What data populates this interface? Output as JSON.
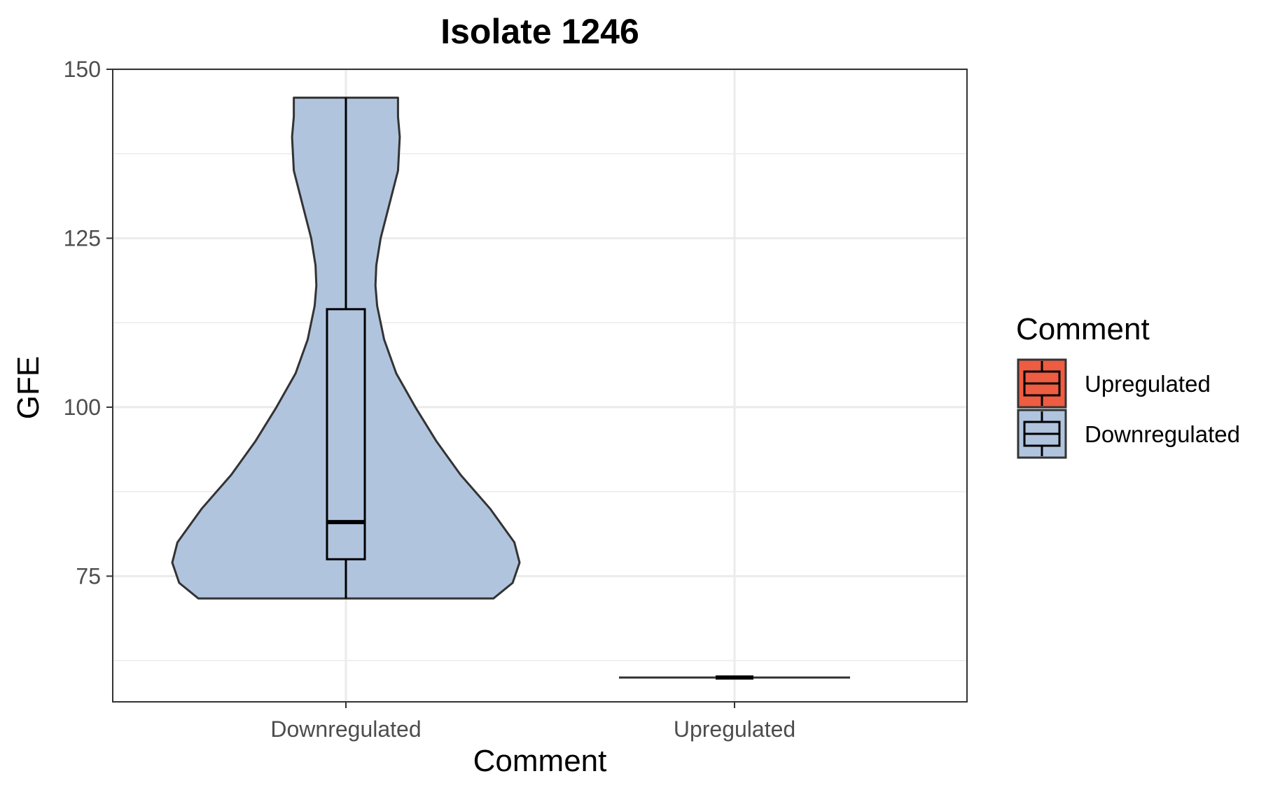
{
  "chart_data": {
    "type": "violin",
    "title": "Isolate 1246",
    "xlabel": "Comment",
    "ylabel": "GFE",
    "categories": [
      "Downregulated",
      "Upregulated"
    ],
    "ylim": [
      56.4,
      150
    ],
    "yticks": [
      75,
      100,
      125,
      150
    ],
    "grid": true,
    "legend": {
      "title": "Comment",
      "position": "right",
      "entries": [
        {
          "label": "Upregulated",
          "color": "#ee5c42"
        },
        {
          "label": "Downregulated",
          "color": "#b0c4de"
        }
      ]
    },
    "series": [
      {
        "category": "Downregulated",
        "color": "#b0c4de",
        "min": 71.7,
        "q1": 77.5,
        "median": 83.0,
        "q3": 114.5,
        "max": 145.8,
        "density_profile": [
          [
            71.7,
            0.85
          ],
          [
            74,
            0.96
          ],
          [
            77,
            1.0
          ],
          [
            80,
            0.97
          ],
          [
            85,
            0.83
          ],
          [
            90,
            0.66
          ],
          [
            95,
            0.52
          ],
          [
            100,
            0.4
          ],
          [
            105,
            0.29
          ],
          [
            110,
            0.22
          ],
          [
            115,
            0.18
          ],
          [
            118,
            0.17
          ],
          [
            121,
            0.175
          ],
          [
            125,
            0.2
          ],
          [
            130,
            0.25
          ],
          [
            135,
            0.3
          ],
          [
            140,
            0.31
          ],
          [
            143,
            0.3
          ],
          [
            145.8,
            0.3
          ]
        ]
      },
      {
        "category": "Upregulated",
        "color": "#ee5c42",
        "min": 60.0,
        "q1": 60.0,
        "median": 60.0,
        "q3": 60.0,
        "max": 60.0,
        "density_profile": []
      }
    ]
  }
}
